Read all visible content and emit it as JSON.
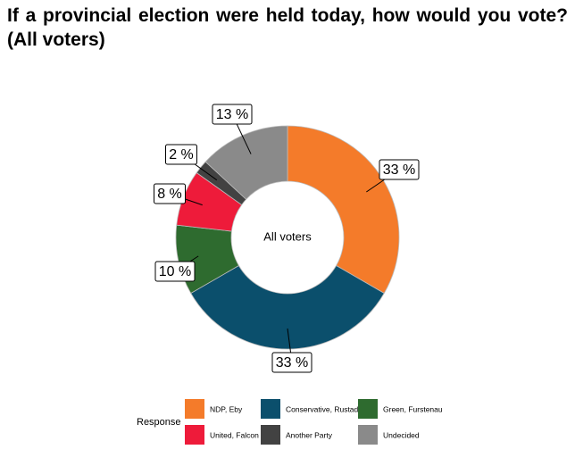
{
  "chart_data": {
    "type": "donut",
    "title": "If a provincial election were held today, how would you vote? (All voters)",
    "center_label": "All voters",
    "legend_title": "Response",
    "categories": [
      "NDP, Eby",
      "Conservative, Rustad",
      "Green, Furstenau",
      "United, Falcon",
      "Another Party",
      "Undecided"
    ],
    "values": [
      33,
      33,
      10,
      8,
      2,
      13
    ],
    "value_labels": [
      "33 %",
      "33 %",
      "10 %",
      "8 %",
      "2 %",
      "13 %"
    ],
    "colors": [
      "#f47b2a",
      "#0b4f6c",
      "#2e6b2f",
      "#ee1b3a",
      "#424242",
      "#8a8a8a"
    ],
    "legend_position": "bottom"
  }
}
